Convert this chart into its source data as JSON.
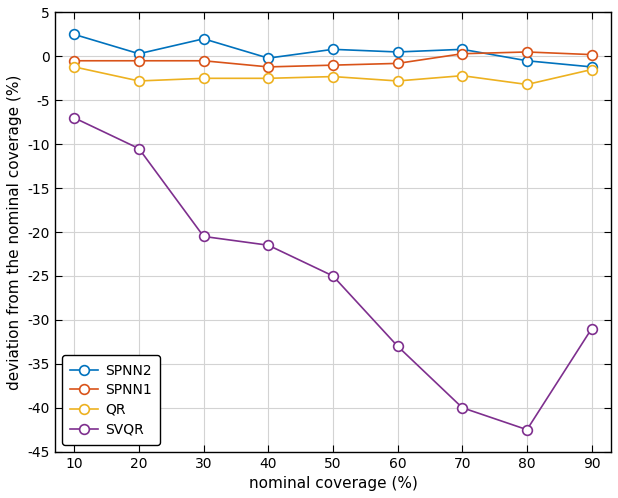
{
  "x": [
    10,
    20,
    30,
    40,
    50,
    60,
    70,
    80,
    90
  ],
  "SPNN2": [
    2.5,
    0.3,
    2.0,
    -0.2,
    0.8,
    0.5,
    0.8,
    -0.5,
    -1.2
  ],
  "SPNN1": [
    -0.5,
    -0.5,
    -0.5,
    -1.2,
    -1.0,
    -0.8,
    0.3,
    0.5,
    0.2
  ],
  "QR": [
    -1.2,
    -2.8,
    -2.5,
    -2.5,
    -2.3,
    -2.8,
    -2.2,
    -3.2,
    -1.5
  ],
  "SVQR": [
    -7.0,
    -10.5,
    -20.5,
    -21.5,
    -25.0,
    -33.0,
    -40.0,
    -42.5,
    -31.0
  ],
  "SPNN2_color": "#0072BD",
  "SPNN1_color": "#D95319",
  "QR_color": "#EDB120",
  "SVQR_color": "#7E2F8E",
  "xlabel": "nominal coverage (%)",
  "ylabel": "deviation from the nominal coverage (%)",
  "ylim": [
    -45,
    5
  ],
  "xlim": [
    7,
    93
  ],
  "yticks": [
    5,
    0,
    -5,
    -10,
    -15,
    -20,
    -25,
    -30,
    -35,
    -40,
    -45
  ],
  "xticks": [
    10,
    20,
    30,
    40,
    50,
    60,
    70,
    80,
    90
  ],
  "markersize": 7,
  "linewidth": 1.2,
  "bg_color": "#FFFFFF",
  "grid_color": "#D3D3D3"
}
